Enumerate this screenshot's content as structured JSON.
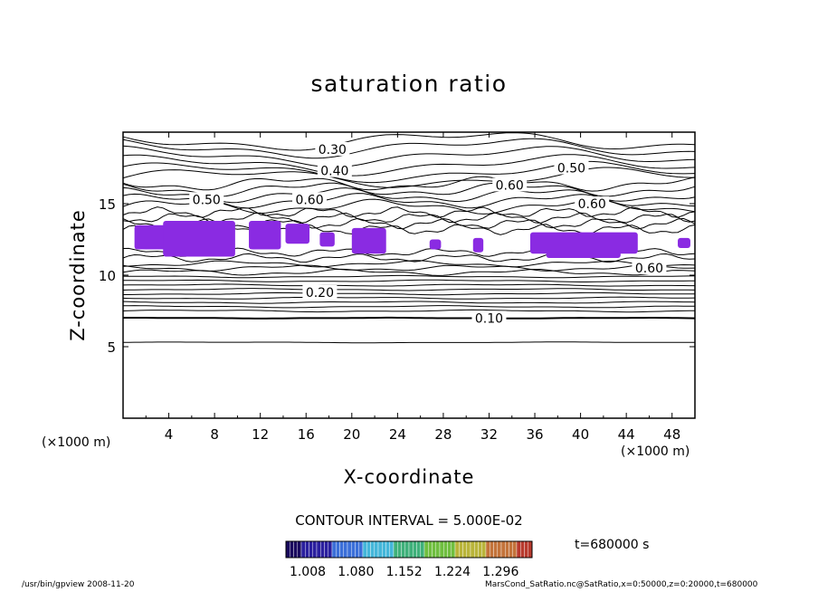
{
  "chart_data": {
    "type": "contour",
    "title": "saturation ratio",
    "xlabel": "X-coordinate",
    "ylabel": "Z-coordinate",
    "x_unit_label": "(×1000 m)",
    "xlim": [
      0,
      50
    ],
    "ylim": [
      0,
      20
    ],
    "x_ticks": [
      4,
      8,
      12,
      16,
      20,
      24,
      28,
      32,
      36,
      40,
      44,
      48
    ],
    "y_ticks": [
      5,
      10,
      15
    ],
    "contour_interval_text": "CONTOUR INTERVAL = 5.000E-02",
    "contour_labels": [
      {
        "text": "0.30",
        "x": 18.3,
        "y": 18.8
      },
      {
        "text": "0.40",
        "x": 18.5,
        "y": 17.3
      },
      {
        "text": "0.50",
        "x": 39.2,
        "y": 17.5
      },
      {
        "text": "0.60",
        "x": 33.8,
        "y": 16.3
      },
      {
        "text": "0.50",
        "x": 7.3,
        "y": 15.3
      },
      {
        "text": "0.60",
        "x": 16.3,
        "y": 15.3
      },
      {
        "text": "0.60",
        "x": 41.0,
        "y": 15.0
      },
      {
        "text": "0.60",
        "x": 46.0,
        "y": 10.5
      },
      {
        "text": "0.20",
        "x": 17.2,
        "y": 8.8
      },
      {
        "text": "0.10",
        "x": 32.0,
        "y": 7.0
      }
    ],
    "colorbar": {
      "ticks": [
        "1.008",
        "1.080",
        "1.152",
        "1.224",
        "1.296"
      ],
      "colors": [
        "#1a0a5e",
        "#2a1f9e",
        "#3b6fd8",
        "#44b6d9",
        "#3fb07a",
        "#6fbe3f",
        "#b9b43a",
        "#c3733a",
        "#b83a2e"
      ]
    },
    "time_label": "t=680000 s",
    "shading_color": "#8a2be2"
  },
  "footer": {
    "left": "/usr/bin/gpview  2008-11-20",
    "right": "MarsCond_SatRatio.nc@SatRatio,x=0:50000,z=0:20000,t=680000"
  }
}
